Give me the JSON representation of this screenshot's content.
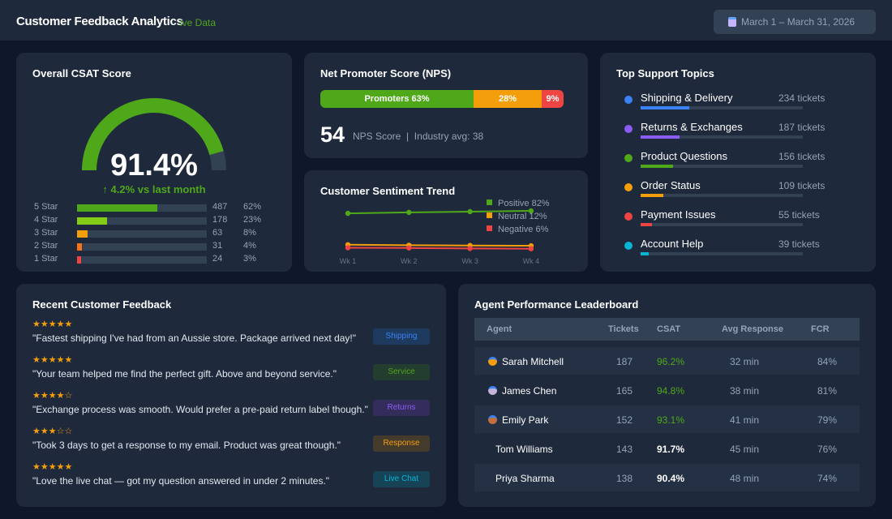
{
  "header": {
    "title": "Customer Feedback Analytics",
    "live": "Live Data",
    "live_visible": "ive Data",
    "date_range": "March 1 – March 31, 2026",
    "calendar_icon": "calendar-icon"
  },
  "csat": {
    "title": "Overall CSAT Score",
    "score": "91.4%",
    "score_value": 91.4,
    "delta": "↑ 4.2% vs last month",
    "gauge_color": "#4fa81a",
    "ratings": [
      {
        "label": "5 Star",
        "count": "487",
        "pct": "62%",
        "value": 62,
        "color": "#4fa81a"
      },
      {
        "label": "4 Star",
        "count": "178",
        "pct": "23%",
        "value": 23,
        "color": "#84cc16"
      },
      {
        "label": "3 Star",
        "count": "63",
        "pct": "8%",
        "value": 8,
        "color": "#f59e0b"
      },
      {
        "label": "2 Star",
        "count": "31",
        "pct": "4%",
        "value": 4,
        "color": "#f97316"
      },
      {
        "label": "1 Star",
        "count": "24",
        "pct": "3%",
        "value": 3,
        "color": "#ef4444"
      }
    ]
  },
  "nps": {
    "title": "Net Promoter Score (NPS)",
    "promoters": "Promoters 63%",
    "passives": "28%",
    "detractors": "9%",
    "shares": [
      63,
      28,
      9
    ],
    "score": "54",
    "sub": "NPS Score  |  Industry avg: 38"
  },
  "sentiment": {
    "title": "Customer Sentiment Trend"
  },
  "chart_data": {
    "type": "line",
    "title": "Customer Sentiment Trend",
    "categories": [
      "Wk 1",
      "Wk 2",
      "Wk 3",
      "Wk 4"
    ],
    "series": [
      {
        "name": "Positive 82%",
        "color": "#4fa81a",
        "values": [
          77,
          79,
          80.5,
          82
        ]
      },
      {
        "name": "Neutral 12%",
        "color": "#f59e0b",
        "values": [
          14,
          13,
          12.5,
          12
        ]
      },
      {
        "name": "Negative 6%",
        "color": "#ef4444",
        "values": [
          8,
          7.5,
          6.5,
          6
        ]
      }
    ],
    "ylim": [
      0,
      100
    ],
    "grid": false,
    "legend": "top-right"
  },
  "topics": {
    "title": "Top Support Topics",
    "items": [
      {
        "name": "Shipping & Delivery",
        "tickets": "234 tickets",
        "value": 30,
        "color": "#3b82f6"
      },
      {
        "name": "Returns & Exchanges",
        "tickets": "187 tickets",
        "value": 24,
        "color": "#8b5cf6"
      },
      {
        "name": "Product Questions",
        "tickets": "156 tickets",
        "value": 20,
        "color": "#4fa81a"
      },
      {
        "name": "Order Status",
        "tickets": "109 tickets",
        "value": 14,
        "color": "#f59e0b"
      },
      {
        "name": "Payment Issues",
        "tickets": "55 tickets",
        "value": 7,
        "color": "#ef4444"
      },
      {
        "name": "Account Help",
        "tickets": "39 tickets",
        "value": 5,
        "color": "#06b6d4"
      }
    ]
  },
  "feedback": {
    "title": "Recent Customer Feedback",
    "items": [
      {
        "stars": "★★★★★",
        "quote": "\"Fastest shipping I've had from an Aussie store. Package arrived next day!\"",
        "tag": "Shipping",
        "fg": "#3b82f6",
        "bg": "#1e3a5f"
      },
      {
        "stars": "★★★★★",
        "quote": "\"Your team helped me find the perfect gift. Above and beyond service.\"",
        "tag": "Service",
        "fg": "#4fa81a",
        "bg": "#233d2e"
      },
      {
        "stars": "★★★★☆",
        "quote": "\"Exchange process was smooth. Would prefer a pre-paid return label though.\"",
        "tag": "Returns",
        "fg": "#8b5cf6",
        "bg": "#342d5c"
      },
      {
        "stars": "★★★☆☆",
        "quote": "\"Took 3 days to get a response to my email. Product was great though.\"",
        "tag": "Response",
        "fg": "#f59e0b",
        "bg": "#453b2d"
      },
      {
        "stars": "★★★★★",
        "quote": "\"Love the live chat — got my question answered in under 2 minutes.\"",
        "tag": "Live Chat",
        "fg": "#06b6d4",
        "bg": "#164456"
      }
    ]
  },
  "leaderboard": {
    "title": "Agent Performance Leaderboard",
    "columns": [
      "Agent",
      "Tickets",
      "CSAT",
      "Avg Response",
      "FCR"
    ],
    "rows": [
      {
        "agent": "Sarah Mitchell",
        "medal": "gold",
        "tickets": "187",
        "csat": "96.2%",
        "resp": "32 min",
        "fcr": "84%"
      },
      {
        "agent": "James Chen",
        "medal": "silver",
        "tickets": "165",
        "csat": "94.8%",
        "resp": "38 min",
        "fcr": "81%"
      },
      {
        "agent": "Emily Park",
        "medal": "bronze",
        "tickets": "152",
        "csat": "93.1%",
        "resp": "41 min",
        "fcr": "79%"
      },
      {
        "agent": "Tom Williams",
        "medal": "",
        "tickets": "143",
        "csat": "91.7%",
        "resp": "45 min",
        "fcr": "76%"
      },
      {
        "agent": "Priya Sharma",
        "medal": "",
        "tickets": "138",
        "csat": "90.4%",
        "resp": "48 min",
        "fcr": "74%"
      }
    ]
  }
}
